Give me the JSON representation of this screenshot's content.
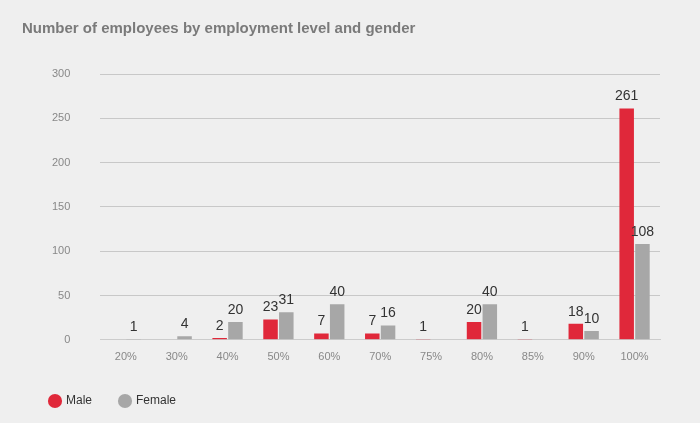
{
  "chart_data": {
    "type": "bar",
    "title": "Number of employees by employment level and gender",
    "categories": [
      "20%",
      "30%",
      "40%",
      "50%",
      "60%",
      "70%",
      "75%",
      "80%",
      "85%",
      "90%",
      "100%"
    ],
    "series": [
      {
        "name": "Male",
        "color": "#e0283a",
        "values": [
          null,
          null,
          2,
          23,
          7,
          7,
          1,
          20,
          1,
          18,
          261
        ]
      },
      {
        "name": "Female",
        "color": "#a7a7a7",
        "values": [
          1,
          4,
          20,
          31,
          40,
          16,
          null,
          40,
          null,
          10,
          108
        ]
      }
    ],
    "ylim": [
      0,
      300
    ],
    "yticks": [
      0,
      50,
      100,
      150,
      200,
      250,
      300
    ],
    "grid": true,
    "legend": "bottom-left",
    "data_labels": true
  }
}
